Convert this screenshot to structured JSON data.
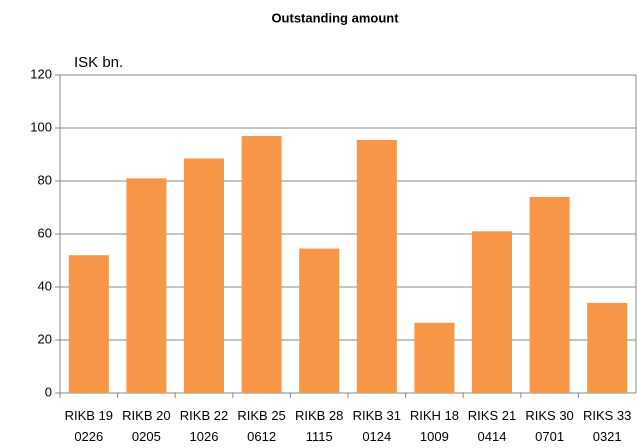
{
  "chart_data": {
    "type": "bar",
    "title": "Outstanding amount",
    "y_label": "ISK bn.",
    "categories": [
      "RIKB 19 0226",
      "RIKB 20 0205",
      "RIKB 22 1026",
      "RIKB 25 0612",
      "RIKB 28 1115",
      "RIKB 31 0124",
      "RIKH 18 1009",
      "RIKS 21 0414",
      "RIKS 30 0701",
      "RIKS 33 0321"
    ],
    "values": [
      52,
      81,
      88.5,
      97,
      54.5,
      95.5,
      26.5,
      61,
      74,
      34
    ],
    "color": "#f79646",
    "ylim": [
      0,
      120
    ],
    "yticks": [
      0,
      20,
      40,
      60,
      80,
      100,
      120
    ],
    "grid": true
  }
}
